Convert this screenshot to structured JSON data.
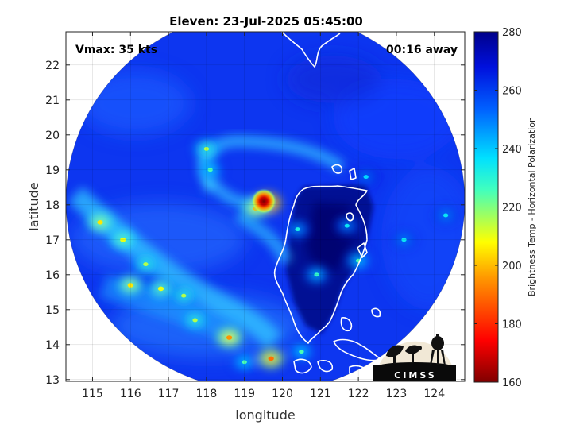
{
  "chart_data": {
    "type": "heatmap",
    "title": "Eleven: 23-Jul-2025 05:45:00",
    "xlabel": "longitude",
    "ylabel": "latitude",
    "xlim": [
      114.3,
      124.8
    ],
    "ylim": [
      12.95,
      22.95
    ],
    "xticks": [
      "115",
      "116",
      "117",
      "118",
      "119",
      "120",
      "121",
      "122",
      "123",
      "124"
    ],
    "yticks": [
      "13",
      "14",
      "15",
      "16",
      "17",
      "18",
      "19",
      "20",
      "21",
      "22"
    ],
    "grid": true,
    "annotations": {
      "vmax": "Vmax: 35 kts",
      "time_away": "00:16 away"
    },
    "storm_center": {
      "lon": 119.55,
      "lat": 18.1
    },
    "colorbar": {
      "label": "Brightness Temp - Horizontal Polarization",
      "range": [
        160,
        280
      ],
      "ticks": [
        "160",
        "180",
        "200",
        "220",
        "240",
        "260",
        "280"
      ],
      "colormap": "jet"
    },
    "convective_features": [
      {
        "lon": 119.6,
        "lat": 18.05,
        "tb": 175
      },
      {
        "lon": 119.3,
        "lat": 17.9,
        "tb": 200
      },
      {
        "lon": 118.0,
        "lat": 19.6,
        "tb": 215
      },
      {
        "lon": 118.1,
        "lat": 19.0,
        "tb": 225
      },
      {
        "lon": 115.2,
        "lat": 17.5,
        "tb": 205
      },
      {
        "lon": 115.8,
        "lat": 17.0,
        "tb": 210
      },
      {
        "lon": 116.4,
        "lat": 16.3,
        "tb": 215
      },
      {
        "lon": 116.0,
        "lat": 15.7,
        "tb": 205
      },
      {
        "lon": 116.8,
        "lat": 15.6,
        "tb": 210
      },
      {
        "lon": 117.4,
        "lat": 15.4,
        "tb": 215
      },
      {
        "lon": 117.7,
        "lat": 14.7,
        "tb": 215
      },
      {
        "lon": 118.6,
        "lat": 14.2,
        "tb": 195
      },
      {
        "lon": 119.7,
        "lat": 13.6,
        "tb": 190
      },
      {
        "lon": 119.0,
        "lat": 13.5,
        "tb": 225
      },
      {
        "lon": 120.5,
        "lat": 13.8,
        "tb": 225
      },
      {
        "lon": 122.0,
        "lat": 16.4,
        "tb": 225
      },
      {
        "lon": 121.7,
        "lat": 17.4,
        "tb": 235
      },
      {
        "lon": 123.2,
        "lat": 17.0,
        "tb": 235
      },
      {
        "lon": 124.3,
        "lat": 17.7,
        "tb": 235
      },
      {
        "lon": 120.9,
        "lat": 16.0,
        "tb": 228
      },
      {
        "lon": 120.4,
        "lat": 17.3,
        "tb": 232
      },
      {
        "lon": 122.2,
        "lat": 18.8,
        "tb": 238
      }
    ]
  },
  "logo": {
    "text": "CIMSS"
  }
}
